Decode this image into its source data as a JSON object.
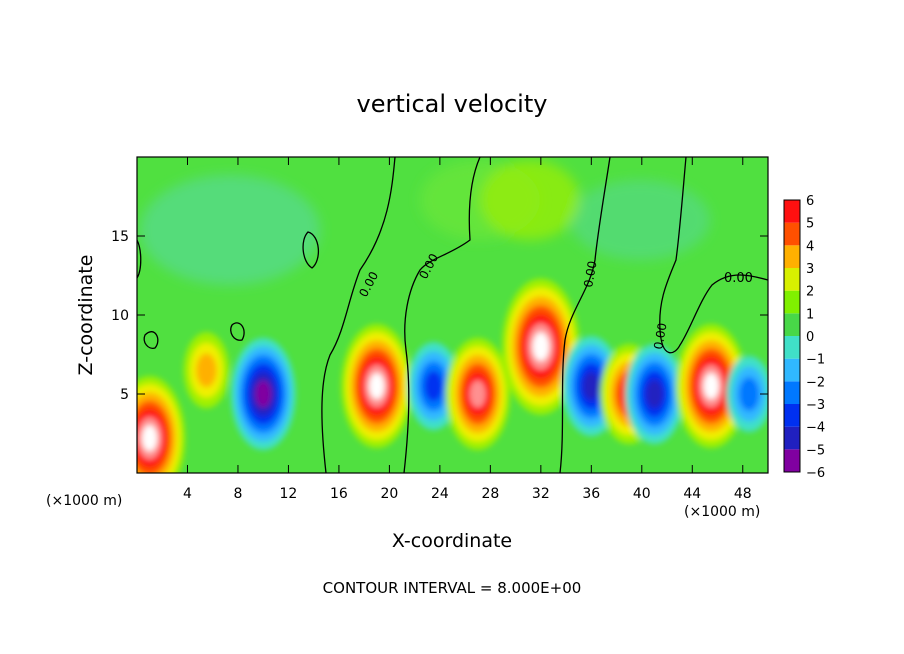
{
  "chart_data": {
    "type": "heatmap",
    "title": "vertical velocity",
    "xlabel": "X-coordinate",
    "ylabel": "Z-coordinate",
    "x_unit_left": "(×1000 m)",
    "x_unit_right": "(×1000 m)",
    "footer": "CONTOUR INTERVAL = 8.000E+00",
    "xlim": [
      0,
      50
    ],
    "ylim": [
      0,
      20
    ],
    "x_ticks": [
      4,
      8,
      12,
      16,
      20,
      24,
      28,
      32,
      36,
      40,
      44,
      48
    ],
    "x_tick_labels": [
      "4",
      "8",
      "12",
      "16",
      "20",
      "24",
      "28",
      "32",
      "36",
      "40",
      "44",
      "48"
    ],
    "y_ticks": [
      5,
      10,
      15
    ],
    "y_tick_labels": [
      "5",
      "10",
      "15"
    ],
    "colorbar": {
      "levels": [
        -6,
        -5,
        -4,
        -3,
        -2,
        -1,
        0,
        1,
        2,
        3,
        4,
        5,
        6
      ],
      "labels": [
        "−6",
        "−5",
        "−4",
        "−3",
        "−2",
        "−1",
        "0",
        "1",
        "2",
        "3",
        "4",
        "5",
        "6"
      ],
      "colors": [
        "#8000a0",
        "#2020c0",
        "#0030f0",
        "#0078ff",
        "#30b8ff",
        "#40e0c8",
        "#48d848",
        "#80f000",
        "#d8f000",
        "#ffb000",
        "#ff5000",
        "#ff1010",
        "#ff9090"
      ]
    },
    "contour_labels": [
      "0.00",
      "0.00",
      "0.00",
      "0.00",
      "0.00"
    ],
    "features": [
      {
        "x": 1,
        "z": 2.2,
        "w": 8
      },
      {
        "x": 5.5,
        "z": 6.5,
        "w": 4
      },
      {
        "x": 10,
        "z": 5,
        "w": -7
      },
      {
        "x": 19,
        "z": 5.5,
        "w": 8
      },
      {
        "x": 23.5,
        "z": 5.5,
        "w": -5
      },
      {
        "x": 27,
        "z": 5,
        "w": 7
      },
      {
        "x": 32,
        "z": 8,
        "w": 9
      },
      {
        "x": 36,
        "z": 5.5,
        "w": -6
      },
      {
        "x": 39,
        "z": 5,
        "w": 6
      },
      {
        "x": 41,
        "z": 5,
        "w": -6
      },
      {
        "x": 45.5,
        "z": 5.5,
        "w": 8
      },
      {
        "x": 48.5,
        "z": 5,
        "w": -4
      }
    ]
  }
}
